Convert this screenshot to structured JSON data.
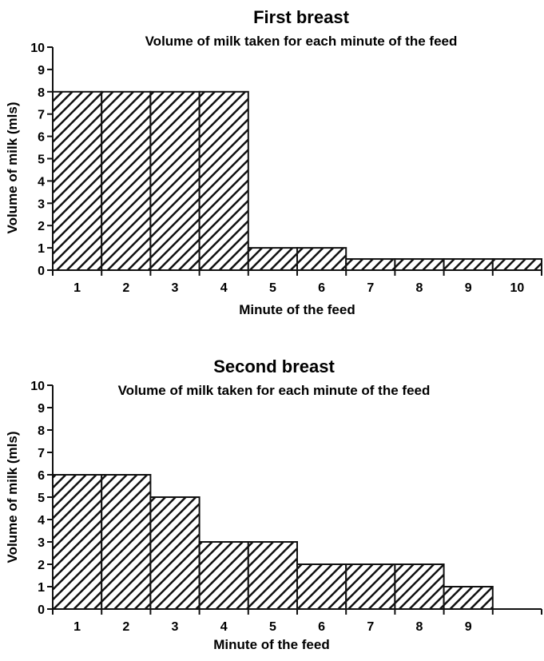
{
  "chart_data": [
    {
      "type": "bar",
      "title": "First breast",
      "subtitle": "Volume of milk taken for each minute of the feed",
      "xlabel": "Minute of the feed",
      "ylabel": "Volume of milk (mls)",
      "categories": [
        "1",
        "2",
        "3",
        "4",
        "5",
        "6",
        "7",
        "8",
        "9",
        "10"
      ],
      "values": [
        8,
        8,
        8,
        8,
        1,
        1,
        0.5,
        0.5,
        0.5,
        0.5
      ],
      "yticks": [
        "0",
        "1",
        "2",
        "3",
        "4",
        "5",
        "6",
        "7",
        "8",
        "9",
        "10"
      ],
      "ylim": [
        0,
        10
      ],
      "bar_fill": "diagonal-hatch",
      "grid": false
    },
    {
      "type": "bar",
      "title": "Second breast",
      "subtitle": "Volume of milk taken for each minute of the feed",
      "xlabel": "Minute of the feed",
      "ylabel": "Volume of milk (mls)",
      "categories": [
        "1",
        "2",
        "3",
        "4",
        "5",
        "6",
        "7",
        "8",
        "9"
      ],
      "values": [
        6,
        6,
        5,
        3,
        3,
        2,
        2,
        2,
        1
      ],
      "yticks": [
        "0",
        "1",
        "2",
        "3",
        "4",
        "5",
        "6",
        "7",
        "8",
        "9",
        "10"
      ],
      "ylim": [
        0,
        10
      ],
      "bar_fill": "diagonal-hatch",
      "grid": false
    }
  ],
  "colors": {
    "ink": "#111111",
    "background": "#ffffff"
  }
}
